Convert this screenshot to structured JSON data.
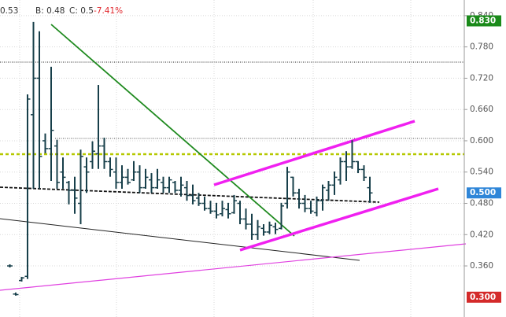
{
  "chart_data": {
    "type": "ohlc",
    "quote": [
      "0.53",
      "B: 0.48",
      "C: 0.5"
    ],
    "change": "-7.41%",
    "change_color": "#e0262b",
    "bar_color": "#173f4a",
    "ylim": [
      0.262,
      0.87
    ],
    "yticks": [
      {
        "value": 0.84,
        "label": "0.840"
      },
      {
        "value": 0.78,
        "label": "0.780"
      },
      {
        "value": 0.72,
        "label": "0.720"
      },
      {
        "value": 0.66,
        "label": "0.660"
      },
      {
        "value": 0.6,
        "label": "0.600"
      },
      {
        "value": 0.54,
        "label": "0.540"
      },
      {
        "value": 0.48,
        "label": "0.480"
      },
      {
        "value": 0.42,
        "label": "0.420"
      },
      {
        "value": 0.36,
        "label": "0.360"
      }
    ],
    "grid": true,
    "price_labels": [
      {
        "value": 0.83,
        "label": "0.830",
        "color": "#1a8a1a"
      },
      {
        "value": 0.5,
        "label": "0.500",
        "color": "#2f86d8"
      },
      {
        "value": 0.3,
        "label": "0.300",
        "color": "#d42a2a"
      }
    ],
    "open": [
      0.36,
      0.306,
      0.332,
      0.34,
      0.65,
      0.72,
      0.6,
      0.585,
      0.59,
      0.54,
      0.52,
      0.505,
      0.48,
      0.55,
      0.56,
      0.575,
      0.59,
      0.56,
      0.54,
      0.52,
      0.53,
      0.525,
      0.54,
      0.51,
      0.525,
      0.51,
      0.52,
      0.51,
      0.52,
      0.505,
      0.51,
      0.495,
      0.49,
      0.48,
      0.47,
      0.465,
      0.46,
      0.468,
      0.462,
      0.48,
      0.45,
      0.44,
      0.42,
      0.432,
      0.425,
      0.435,
      0.432,
      0.48,
      0.53,
      0.5,
      0.48,
      0.47,
      0.462,
      0.485,
      0.505,
      0.515,
      0.525,
      0.56,
      0.55,
      0.56,
      0.545,
      0.51
    ],
    "high": [
      0.363,
      0.309,
      0.339,
      0.689,
      0.828,
      0.81,
      0.614,
      0.742,
      0.602,
      0.568,
      0.523,
      0.531,
      0.583,
      0.568,
      0.599,
      0.707,
      0.606,
      0.568,
      0.568,
      0.553,
      0.546,
      0.561,
      0.553,
      0.546,
      0.538,
      0.546,
      0.531,
      0.531,
      0.523,
      0.531,
      0.523,
      0.516,
      0.5,
      0.493,
      0.485,
      0.481,
      0.485,
      0.481,
      0.496,
      0.485,
      0.47,
      0.46,
      0.448,
      0.44,
      0.445,
      0.443,
      0.481,
      0.55,
      0.531,
      0.508,
      0.496,
      0.485,
      0.493,
      0.516,
      0.523,
      0.541,
      0.568,
      0.58,
      0.601,
      0.561,
      0.553,
      0.531
    ],
    "low": [
      0.357,
      0.303,
      0.33,
      0.335,
      0.508,
      0.508,
      0.576,
      0.523,
      0.508,
      0.508,
      0.478,
      0.46,
      0.44,
      0.5,
      0.546,
      0.546,
      0.546,
      0.531,
      0.508,
      0.508,
      0.516,
      0.523,
      0.5,
      0.508,
      0.5,
      0.508,
      0.5,
      0.5,
      0.5,
      0.493,
      0.485,
      0.478,
      0.475,
      0.466,
      0.46,
      0.451,
      0.455,
      0.451,
      0.46,
      0.44,
      0.43,
      0.41,
      0.41,
      0.418,
      0.421,
      0.421,
      0.43,
      0.47,
      0.493,
      0.47,
      0.463,
      0.46,
      0.455,
      0.466,
      0.485,
      0.496,
      0.516,
      0.523,
      0.546,
      0.538,
      0.523,
      0.481
    ],
    "close": [
      0.36,
      0.305,
      0.337,
      0.68,
      0.72,
      0.57,
      0.585,
      0.62,
      0.52,
      0.53,
      0.505,
      0.49,
      0.57,
      0.54,
      0.58,
      0.59,
      0.56,
      0.545,
      0.52,
      0.53,
      0.52,
      0.54,
      0.51,
      0.53,
      0.51,
      0.525,
      0.51,
      0.525,
      0.505,
      0.515,
      0.495,
      0.485,
      0.48,
      0.47,
      0.465,
      0.458,
      0.47,
      0.46,
      0.485,
      0.45,
      0.44,
      0.42,
      0.435,
      0.425,
      0.438,
      0.43,
      0.475,
      0.54,
      0.5,
      0.48,
      0.47,
      0.465,
      0.485,
      0.51,
      0.515,
      0.53,
      0.56,
      0.55,
      0.56,
      0.545,
      0.53,
      0.5
    ]
  }
}
